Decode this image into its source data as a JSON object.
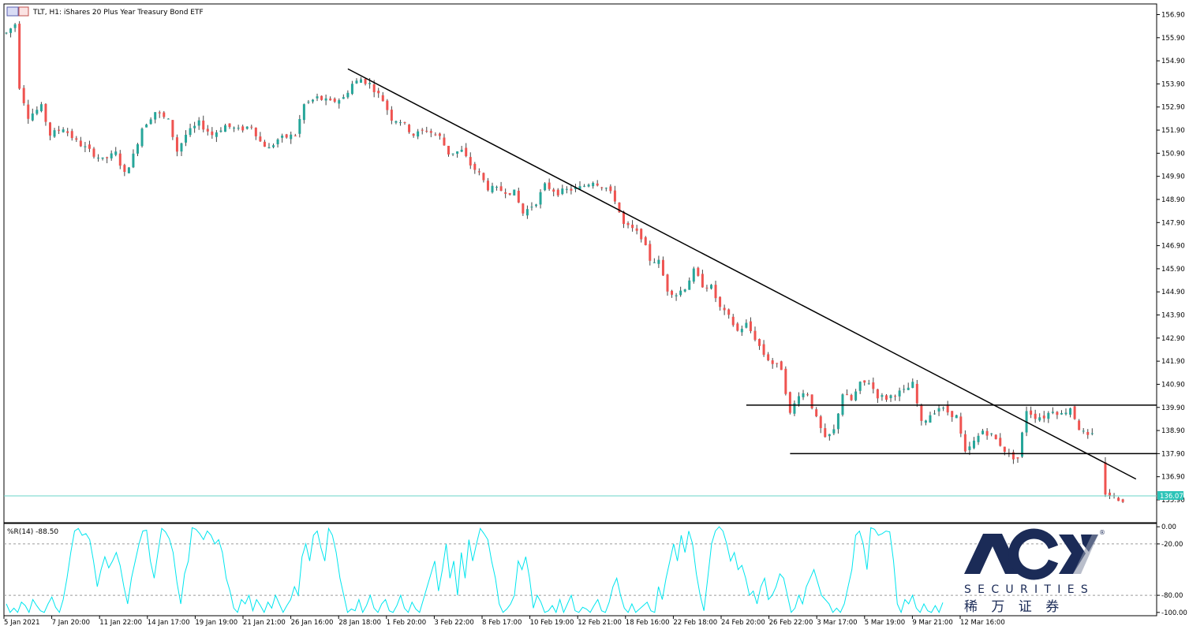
{
  "header": {
    "symbol_line": "TLT, H1:  iShares 20 Plus Year Treasury Bond ETF"
  },
  "indicator": {
    "label": "%R(14) -88.50",
    "levels": [
      0.0,
      -20.0,
      -80.0,
      -100.0
    ],
    "level_labels": [
      "0.00",
      "-20.00",
      "-80.00",
      "-100.00"
    ]
  },
  "current_price": {
    "value": 136.07,
    "label": "136.07"
  },
  "logo": {
    "brand": "ACY",
    "sub": "SECURITIES",
    "cn": "稀 万 证 券",
    "registered": "®"
  },
  "colors": {
    "bull": "#26a69a",
    "bear": "#ef5350",
    "wick": "#444444",
    "indicator_line": "#00e5ee",
    "price_line": "#6ad6c8",
    "logo_navy": "#1b2b57"
  },
  "chart_data": [
    {
      "type": "candlestick",
      "title": "TLT, H1:  iShares 20 Plus Year Treasury Bond ETF",
      "yticks": [
        156.9,
        155.9,
        154.9,
        153.9,
        152.9,
        151.9,
        150.9,
        149.9,
        148.9,
        147.9,
        146.9,
        145.9,
        144.9,
        143.9,
        142.9,
        141.9,
        140.9,
        139.9,
        138.9,
        137.9,
        136.9,
        135.9
      ],
      "ylim": [
        135.5,
        157.2
      ],
      "xticks": [
        "5 Jan 2021",
        "7 Jan 20:00",
        "11 Jan 22:00",
        "14 Jan 17:00",
        "19 Jan 19:00",
        "21 Jan 21:00",
        "26 Jan 16:00",
        "28 Jan 18:00",
        "1 Feb 20:00",
        "3 Feb 22:00",
        "8 Feb 17:00",
        "10 Feb 19:00",
        "12 Feb 21:00",
        "18 Feb 16:00",
        "22 Feb 18:00",
        "24 Feb 20:00",
        "26 Feb 22:00",
        "3 Mar 17:00",
        "5 Mar 19:00",
        "9 Mar 21:00",
        "12 Mar 16:00"
      ],
      "price_path": [
        [
          0,
          156.1
        ],
        [
          2,
          156.5
        ],
        [
          3,
          153.8
        ],
        [
          5,
          152.5
        ],
        [
          8,
          152.9
        ],
        [
          10,
          151.7
        ],
        [
          13,
          152.0
        ],
        [
          16,
          151.4
        ],
        [
          19,
          151.0
        ],
        [
          22,
          150.6
        ],
        [
          25,
          150.9
        ],
        [
          27,
          150.0
        ],
        [
          29,
          150.8
        ],
        [
          31,
          152.0
        ],
        [
          34,
          152.7
        ],
        [
          37,
          152.3
        ],
        [
          39,
          151.0
        ],
        [
          41,
          151.7
        ],
        [
          44,
          152.2
        ],
        [
          47,
          151.7
        ],
        [
          50,
          152.1
        ],
        [
          53,
          151.9
        ],
        [
          56,
          152.1
        ],
        [
          58,
          151.4
        ],
        [
          60,
          151.1
        ],
        [
          62,
          151.5
        ],
        [
          64,
          151.6
        ],
        [
          66,
          151.7
        ],
        [
          68,
          153.0
        ],
        [
          71,
          153.3
        ],
        [
          74,
          153.1
        ],
        [
          77,
          153.3
        ],
        [
          79,
          153.9
        ],
        [
          81,
          154.1
        ],
        [
          83,
          153.9
        ],
        [
          86,
          153.2
        ],
        [
          88,
          152.4
        ],
        [
          90,
          152.3
        ],
        [
          93,
          151.7
        ],
        [
          96,
          151.9
        ],
        [
          99,
          151.6
        ],
        [
          101,
          150.9
        ],
        [
          104,
          151.0
        ],
        [
          106,
          150.4
        ],
        [
          108,
          150.0
        ],
        [
          110,
          149.4
        ],
        [
          113,
          149.3
        ],
        [
          116,
          149.2
        ],
        [
          118,
          148.3
        ],
        [
          121,
          148.8
        ],
        [
          123,
          149.5
        ],
        [
          126,
          149.2
        ],
        [
          128,
          149.3
        ],
        [
          131,
          149.4
        ],
        [
          134,
          149.7
        ],
        [
          137,
          149.4
        ],
        [
          139,
          148.9
        ],
        [
          141,
          147.8
        ],
        [
          143,
          147.6
        ],
        [
          145,
          147.3
        ],
        [
          147,
          146.3
        ],
        [
          149,
          146.2
        ],
        [
          151,
          145.0
        ],
        [
          153,
          144.8
        ],
        [
          155,
          145.1
        ],
        [
          157,
          145.8
        ],
        [
          159,
          145.2
        ],
        [
          161,
          145.1
        ],
        [
          163,
          144.2
        ],
        [
          165,
          143.8
        ],
        [
          167,
          143.2
        ],
        [
          169,
          143.5
        ],
        [
          171,
          142.9
        ],
        [
          173,
          142.2
        ],
        [
          175,
          141.8
        ],
        [
          177,
          141.6
        ],
        [
          179,
          139.6
        ],
        [
          181,
          140.5
        ],
        [
          183,
          140.5
        ],
        [
          185,
          139.4
        ],
        [
          187,
          138.5
        ],
        [
          189,
          138.9
        ],
        [
          191,
          140.5
        ],
        [
          193,
          140.2
        ],
        [
          195,
          140.9
        ],
        [
          197,
          141.0
        ],
        [
          199,
          140.4
        ],
        [
          201,
          140.3
        ],
        [
          203,
          140.5
        ],
        [
          205,
          140.6
        ],
        [
          207,
          140.9
        ],
        [
          209,
          139.2
        ],
        [
          211,
          139.6
        ],
        [
          213,
          139.9
        ],
        [
          215,
          139.7
        ],
        [
          217,
          139.5
        ],
        [
          219,
          137.9
        ],
        [
          221,
          138.4
        ],
        [
          223,
          138.9
        ],
        [
          225,
          138.7
        ],
        [
          227,
          138.3
        ],
        [
          229,
          137.8
        ],
        [
          231,
          137.7
        ],
        [
          233,
          139.8
        ],
        [
          235,
          139.5
        ],
        [
          237,
          139.5
        ],
        [
          239,
          139.8
        ],
        [
          241,
          139.6
        ],
        [
          243,
          139.9
        ],
        [
          245,
          139.0
        ],
        [
          247,
          138.6
        ],
        [
          249,
          138.8
        ],
        [
          251,
          136.2
        ],
        [
          253,
          136.0
        ],
        [
          255,
          135.9
        ]
      ],
      "price_gaps_after_index": [
        248
      ],
      "lines": [
        {
          "kind": "trendline",
          "from": [
            78,
            154.55
          ],
          "to": [
            258,
            136.8
          ]
        },
        {
          "kind": "horizontal",
          "y": 140.0,
          "from_x": 169,
          "to_x": 262
        },
        {
          "kind": "horizontal",
          "y": 137.9,
          "from_x": 179,
          "to_x": 262
        },
        {
          "kind": "price_line",
          "y": 136.07
        }
      ]
    },
    {
      "type": "line",
      "title": "%R(14) -88.50",
      "ylim": [
        -102,
        2
      ],
      "yticks": [
        0,
        -20,
        -80,
        -100
      ],
      "series": [
        {
          "values": [
            -90,
            -100,
            -95,
            -100,
            -88,
            -92,
            -100,
            -85,
            -92,
            -98,
            -100,
            -90,
            -82,
            -94,
            -100,
            -85,
            -60,
            -30,
            -5,
            -2,
            -10,
            -8,
            -15,
            -40,
            -70,
            -50,
            -35,
            -48,
            -40,
            -30,
            -45,
            -70,
            -90,
            -60,
            -40,
            -20,
            -5,
            -4,
            -40,
            -60,
            -30,
            -2,
            -6,
            -14,
            -30,
            -65,
            -90,
            -55,
            -40,
            -1,
            -3,
            -8,
            -15,
            -5,
            -10,
            -20,
            -15,
            -30,
            -60,
            -75,
            -95,
            -100,
            -85,
            -90,
            -80,
            -98,
            -85,
            -92,
            -100,
            -88,
            -95,
            -80,
            -90,
            -100,
            -92,
            -85,
            -70,
            -80,
            -35,
            -20,
            -40,
            -10,
            -5,
            -25,
            -40,
            -2,
            -10,
            -30,
            -60,
            -80,
            -100,
            -96,
            -98,
            -85,
            -100,
            -92,
            -80,
            -95,
            -100,
            -90,
            -85,
            -98,
            -100,
            -92,
            -80,
            -95,
            -100,
            -88,
            -96,
            -100,
            -85,
            -70,
            -55,
            -40,
            -75,
            -50,
            -20,
            -60,
            -40,
            -80,
            -30,
            -60,
            -15,
            -40,
            -20,
            -2,
            -8,
            -15,
            -40,
            -60,
            -90,
            -100,
            -96,
            -90,
            -80,
            -40,
            -50,
            -35,
            -60,
            -95,
            -80,
            -88,
            -100,
            -98,
            -92,
            -100,
            -85,
            -100,
            -90,
            -80,
            -98,
            -100,
            -94,
            -96,
            -100,
            -92,
            -85,
            -98,
            -100,
            -88,
            -70,
            -60,
            -80,
            -95,
            -100,
            -90,
            -100,
            -96,
            -92,
            -88,
            -98,
            -100,
            -70,
            -85,
            -60,
            -40,
            -20,
            -40,
            -10,
            -30,
            -5,
            -20,
            -55,
            -80,
            -98,
            -60,
            -20,
            -5,
            0,
            -5,
            -20,
            -40,
            -30,
            -50,
            -45,
            -60,
            -80,
            -75,
            -90,
            -70,
            -60,
            -85,
            -80,
            -70,
            -55,
            -60,
            -80,
            -100,
            -95,
            -80,
            -90,
            -70,
            -60,
            -50,
            -65,
            -80,
            -85,
            -90,
            -100,
            -95,
            -100,
            -90,
            -70,
            -50,
            -10,
            -5,
            -20,
            -50,
            -1,
            -3,
            -10,
            -8,
            -5,
            -6,
            -40,
            -90,
            -100,
            -85,
            -90,
            -80,
            -95,
            -100,
            -90,
            -98,
            -100,
            -92,
            -100,
            -88.5
          ]
        }
      ]
    }
  ]
}
